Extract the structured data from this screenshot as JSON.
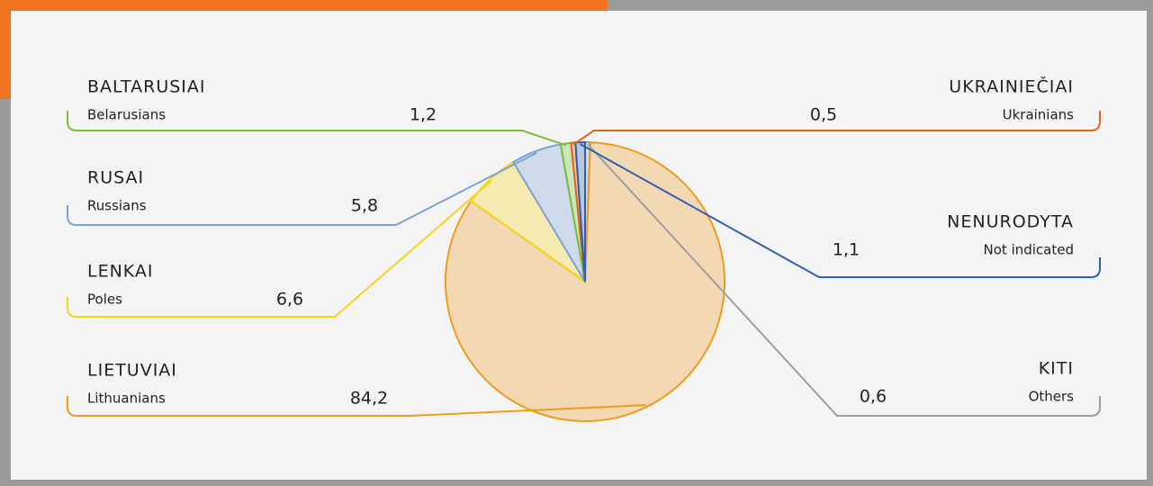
{
  "chart_data": {
    "type": "pie",
    "categories": [
      "KITI",
      "LIETUVIAI",
      "LENKAI",
      "RUSAI",
      "BALTARUSIAI",
      "UKRAINIEČIAI",
      "NENURODYTA"
    ],
    "category_translations": [
      "Others",
      "Lithuanians",
      "Poles",
      "Russians",
      "Belarusians",
      "Ukrainians",
      "Not indicated"
    ],
    "values": [
      0.6,
      84.2,
      6.6,
      5.8,
      1.2,
      0.5,
      1.1
    ],
    "value_labels": [
      "0,6",
      "84,2",
      "6,6",
      "5,8",
      "1,2",
      "0,5",
      "1,1"
    ],
    "colors": [
      "#9e9e9e",
      "#ee9c1e",
      "#f5d41c",
      "#7ba3d6",
      "#7cbf3a",
      "#e0661a",
      "#2f5fb0"
    ]
  }
}
